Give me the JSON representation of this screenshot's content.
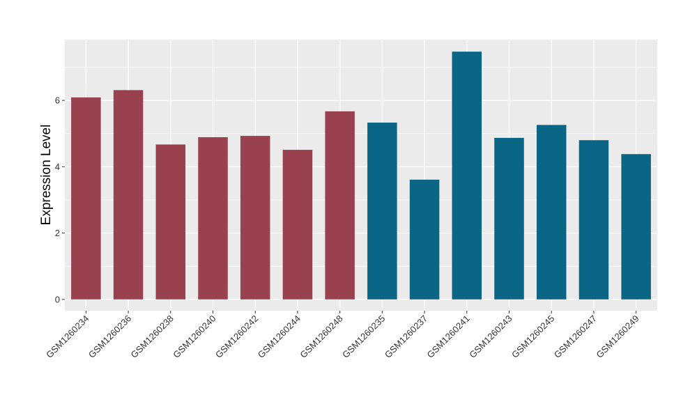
{
  "chart_data": {
    "type": "bar",
    "title": "",
    "xlabel": "",
    "ylabel": "Expression Level",
    "ylim": [
      -0.34,
      7.83
    ],
    "yticks": [
      0,
      2,
      4,
      6
    ],
    "grid": true,
    "categories": [
      "GSM1260234",
      "GSM1260236",
      "GSM1260238",
      "GSM1260240",
      "GSM1260242",
      "GSM1260244",
      "GSM1260248",
      "GSM1260235",
      "GSM1260237",
      "GSM1260241",
      "GSM1260243",
      "GSM1260245",
      "GSM1260247",
      "GSM1260249"
    ],
    "values": [
      6.09,
      6.31,
      4.67,
      4.89,
      4.93,
      4.51,
      5.67,
      5.33,
      3.61,
      7.47,
      4.87,
      5.26,
      4.8,
      4.38
    ],
    "groups": [
      0,
      0,
      0,
      0,
      0,
      0,
      0,
      1,
      1,
      1,
      1,
      1,
      1,
      1
    ],
    "colors": [
      "#9a4150",
      "#0b6686"
    ],
    "panel_bg": "#ebebeb"
  }
}
